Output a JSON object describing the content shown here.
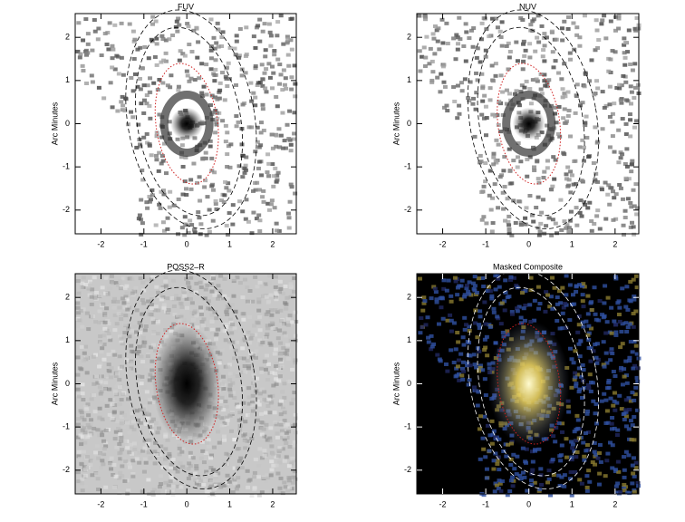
{
  "chart_data": [
    {
      "type": "image",
      "title": "FUV",
      "ylabel": "Arc Minutes",
      "xlim": [
        -2.6,
        2.55
      ],
      "ylim": [
        -2.55,
        2.55
      ],
      "xticks": [
        -2,
        -1,
        0,
        1,
        2
      ],
      "yticks": [
        -2,
        -1,
        0,
        1,
        2
      ]
    },
    {
      "type": "image",
      "title": "NUV",
      "ylabel": "Arc Minutes",
      "xlim": [
        -2.6,
        2.55
      ],
      "ylim": [
        -2.55,
        2.55
      ],
      "xticks": [
        -2,
        -1,
        0,
        1,
        2
      ],
      "yticks": [
        -2,
        -1,
        0,
        1,
        2
      ]
    },
    {
      "type": "image",
      "title": "POSS2–R",
      "ylabel": "Arc Minutes",
      "xlim": [
        -2.6,
        2.55
      ],
      "ylim": [
        -2.55,
        2.55
      ],
      "xticks": [
        -2,
        -1,
        0,
        1,
        2
      ],
      "yticks": [
        -2,
        -1,
        0,
        1,
        2
      ]
    },
    {
      "type": "image",
      "title": "Masked Composite",
      "ylabel": "Arc Minutes",
      "xlim": [
        -2.6,
        2.55
      ],
      "ylim": [
        -2.55,
        2.55
      ],
      "xticks": [
        -2,
        -1,
        0,
        1,
        2
      ],
      "yticks": [
        -2,
        -1,
        0,
        1,
        2
      ]
    }
  ]
}
